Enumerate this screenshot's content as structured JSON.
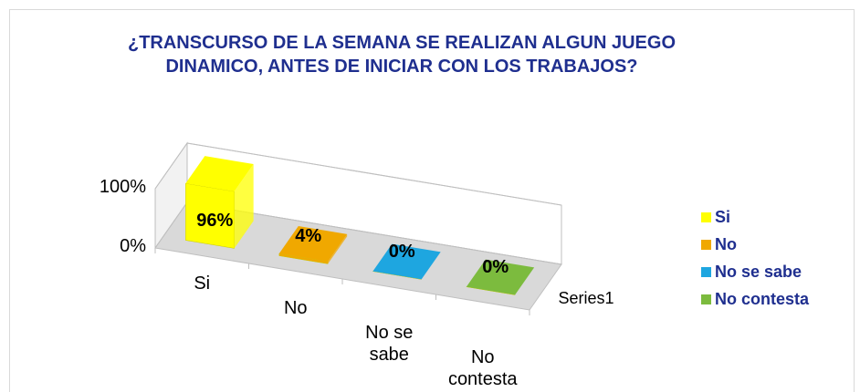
{
  "chart_data": {
    "type": "bar3d",
    "title": "¿TRANSCURSO DE LA SEMANA SE REALIZAN ALGUN JUEGO DINAMICO, ANTES DE INICIAR CON LOS TRABAJOS?",
    "categories": [
      "Si",
      "No",
      "No se sabe",
      "No contesta"
    ],
    "series": [
      {
        "name": "Series1",
        "values": [
          96,
          4,
          0,
          0
        ],
        "value_labels": [
          "96%",
          "4%",
          "0%",
          "0%"
        ]
      }
    ],
    "colors": [
      "#ffff00",
      "#f0a800",
      "#1ea6e0",
      "#7cbb3e"
    ],
    "ylim": [
      0,
      100
    ],
    "yticks": [
      {
        "value": 0,
        "label": "0%"
      },
      {
        "value": 100,
        "label": "100%"
      }
    ],
    "grid": true,
    "legend": "right"
  }
}
